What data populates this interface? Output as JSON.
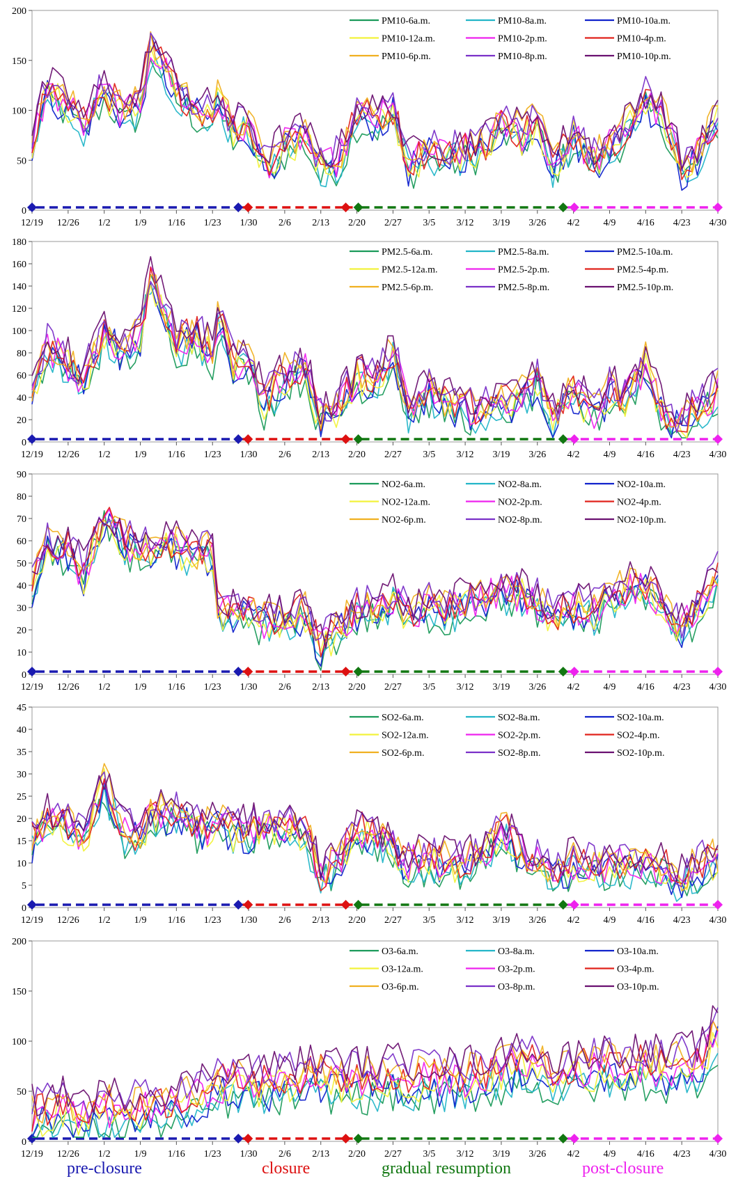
{
  "figure": {
    "phases": [
      {
        "name": "pre-closure",
        "color": "#1a1ab0",
        "start": "12/19",
        "end": "1/28"
      },
      {
        "name": "closure",
        "color": "#dd1111",
        "start": "1/28",
        "end": "2/20"
      },
      {
        "name": "gradual resumption",
        "color": "#117711",
        "start": "2/20",
        "end": "3/31"
      },
      {
        "name": "post-closure",
        "color": "#ee22ee",
        "start": "3/31",
        "end": "4/30"
      }
    ]
  },
  "chart_data": [
    {
      "type": "line",
      "pollutant": "PM10",
      "x_range": [
        "12/19",
        "4/30"
      ],
      "x_ticks": [
        "12/19",
        "12/26",
        "1/2",
        "1/9",
        "1/16",
        "1/23",
        "1/30",
        "2/6",
        "2/13",
        "2/20",
        "2/27",
        "3/5",
        "3/12",
        "3/19",
        "3/26",
        "4/2",
        "4/9",
        "4/16",
        "4/23",
        "4/30"
      ],
      "ylim": [
        0,
        200
      ],
      "y_ticks": [
        0,
        50,
        100,
        150,
        200
      ],
      "legend_position": "top-right",
      "series": [
        {
          "name": "PM10-6a.m.",
          "color": "#1a9a5a"
        },
        {
          "name": "PM10-8a.m.",
          "color": "#22b5c8"
        },
        {
          "name": "PM10-10a.m.",
          "color": "#1022cc"
        },
        {
          "name": "PM10-12a.m.",
          "color": "#f2f23a"
        },
        {
          "name": "PM10-2p.m.",
          "color": "#ee22ee"
        },
        {
          "name": "PM10-4p.m.",
          "color": "#e0221a"
        },
        {
          "name": "PM10-6p.m.",
          "color": "#f0b020"
        },
        {
          "name": "PM10-8p.m.",
          "color": "#7a30c8"
        },
        {
          "name": "PM10-10p.m.",
          "color": "#6a1070"
        }
      ],
      "anchor_dates": [
        "12/19",
        "12/22",
        "12/26",
        "12/29",
        "1/2",
        "1/6",
        "1/9",
        "1/11",
        "1/16",
        "1/20",
        "1/23",
        "1/24",
        "1/27",
        "1/30",
        "2/2",
        "2/6",
        "2/10",
        "2/13",
        "2/17",
        "2/20",
        "2/24",
        "2/27",
        "3/1",
        "3/5",
        "3/8",
        "3/12",
        "3/16",
        "3/19",
        "3/23",
        "3/26",
        "3/29",
        "4/2",
        "4/6",
        "4/9",
        "4/12",
        "4/16",
        "4/20",
        "4/23",
        "4/27",
        "4/30"
      ],
      "anchor_values": [
        70,
        120,
        105,
        85,
        120,
        95,
        105,
        165,
        120,
        100,
        95,
        110,
        80,
        85,
        45,
        65,
        75,
        40,
        55,
        95,
        90,
        100,
        45,
        60,
        55,
        60,
        65,
        85,
        75,
        90,
        45,
        75,
        50,
        65,
        80,
        110,
        90,
        40,
        60,
        95
      ]
    },
    {
      "type": "line",
      "pollutant": "PM2.5",
      "x_range": [
        "12/19",
        "4/30"
      ],
      "x_ticks": [
        "12/19",
        "12/26",
        "1/2",
        "1/9",
        "1/16",
        "1/23",
        "1/30",
        "2/6",
        "2/13",
        "2/20",
        "2/27",
        "3/5",
        "3/12",
        "3/19",
        "3/26",
        "4/2",
        "4/9",
        "4/16",
        "4/23",
        "4/30"
      ],
      "ylim": [
        0,
        180
      ],
      "y_ticks": [
        0,
        20,
        40,
        60,
        80,
        100,
        120,
        140,
        160,
        180
      ],
      "legend_position": "top-right",
      "series": [
        {
          "name": "PM2.5-6a.m.",
          "color": "#1a9a5a"
        },
        {
          "name": "PM2.5-8a.m.",
          "color": "#22b5c8"
        },
        {
          "name": "PM2.5-10a.m.",
          "color": "#1022cc"
        },
        {
          "name": "PM2.5-12a.m.",
          "color": "#f2f23a"
        },
        {
          "name": "PM2.5-2p.m.",
          "color": "#ee22ee"
        },
        {
          "name": "PM2.5-4p.m.",
          "color": "#e0221a"
        },
        {
          "name": "PM2.5-6p.m.",
          "color": "#f0b020"
        },
        {
          "name": "PM2.5-8p.m.",
          "color": "#7a30c8"
        },
        {
          "name": "PM2.5-10p.m.",
          "color": "#6a1070"
        }
      ],
      "anchor_dates": [
        "12/19",
        "12/22",
        "12/26",
        "12/29",
        "1/2",
        "1/6",
        "1/9",
        "1/11",
        "1/16",
        "1/20",
        "1/23",
        "1/24",
        "1/27",
        "1/30",
        "2/2",
        "2/6",
        "2/10",
        "2/13",
        "2/17",
        "2/20",
        "2/24",
        "2/27",
        "3/1",
        "3/5",
        "3/8",
        "3/12",
        "3/16",
        "3/19",
        "3/23",
        "3/26",
        "3/29",
        "4/2",
        "4/6",
        "4/9",
        "4/12",
        "4/16",
        "4/20",
        "4/23",
        "4/27",
        "4/30"
      ],
      "anchor_values": [
        45,
        85,
        70,
        55,
        100,
        80,
        95,
        150,
        90,
        95,
        80,
        110,
        70,
        75,
        35,
        60,
        65,
        20,
        35,
        60,
        55,
        80,
        30,
        45,
        35,
        30,
        30,
        35,
        40,
        55,
        20,
        45,
        25,
        45,
        40,
        70,
        20,
        15,
        35,
        45
      ]
    },
    {
      "type": "line",
      "pollutant": "NO2",
      "x_range": [
        "12/19",
        "4/30"
      ],
      "x_ticks": [
        "12/19",
        "12/26",
        "1/2",
        "1/9",
        "1/16",
        "1/23",
        "1/30",
        "2/6",
        "2/13",
        "2/20",
        "2/27",
        "3/5",
        "3/12",
        "3/19",
        "3/26",
        "4/2",
        "4/9",
        "4/16",
        "4/23",
        "4/30"
      ],
      "ylim": [
        0,
        90
      ],
      "y_ticks": [
        0,
        10,
        20,
        30,
        40,
        50,
        60,
        70,
        80,
        90
      ],
      "legend_position": "top-right",
      "series": [
        {
          "name": "NO2-6a.m.",
          "color": "#1a9a5a"
        },
        {
          "name": "NO2-8a.m.",
          "color": "#22b5c8"
        },
        {
          "name": "NO2-10a.m.",
          "color": "#1022cc"
        },
        {
          "name": "NO2-12a.m.",
          "color": "#f2f23a"
        },
        {
          "name": "NO2-2p.m.",
          "color": "#ee22ee"
        },
        {
          "name": "NO2-4p.m.",
          "color": "#e0221a"
        },
        {
          "name": "NO2-6p.m.",
          "color": "#f0b020"
        },
        {
          "name": "NO2-8p.m.",
          "color": "#7a30c8"
        },
        {
          "name": "NO2-10p.m.",
          "color": "#6a1070"
        }
      ],
      "anchor_dates": [
        "12/19",
        "12/22",
        "12/26",
        "12/29",
        "1/2",
        "1/6",
        "1/9",
        "1/11",
        "1/16",
        "1/20",
        "1/23",
        "1/24",
        "1/27",
        "1/30",
        "2/2",
        "2/6",
        "2/10",
        "2/13",
        "2/17",
        "2/20",
        "2/24",
        "2/27",
        "3/1",
        "3/5",
        "3/8",
        "3/12",
        "3/16",
        "3/19",
        "3/23",
        "3/26",
        "3/29",
        "4/2",
        "4/6",
        "4/9",
        "4/12",
        "4/16",
        "4/20",
        "4/23",
        "4/27",
        "4/30"
      ],
      "anchor_values": [
        40,
        58,
        55,
        45,
        70,
        60,
        55,
        58,
        57,
        52,
        55,
        30,
        27,
        28,
        24,
        25,
        28,
        12,
        22,
        28,
        30,
        35,
        25,
        30,
        28,
        32,
        35,
        38,
        36,
        32,
        25,
        30,
        28,
        35,
        38,
        40,
        30,
        20,
        32,
        45
      ]
    },
    {
      "type": "line",
      "pollutant": "SO2",
      "x_range": [
        "12/19",
        "4/30"
      ],
      "x_ticks": [
        "12/19",
        "12/26",
        "1/2",
        "1/9",
        "1/16",
        "1/23",
        "1/30",
        "2/6",
        "2/13",
        "2/20",
        "2/27",
        "3/5",
        "3/12",
        "3/19",
        "3/26",
        "4/2",
        "4/9",
        "4/16",
        "4/23",
        "4/30"
      ],
      "ylim": [
        0,
        45
      ],
      "y_ticks": [
        0,
        5,
        10,
        15,
        20,
        25,
        30,
        35,
        40,
        45
      ],
      "legend_position": "top-right",
      "series": [
        {
          "name": "SO2-6a.m.",
          "color": "#1a9a5a"
        },
        {
          "name": "SO2-8a.m.",
          "color": "#22b5c8"
        },
        {
          "name": "SO2-10a.m.",
          "color": "#1022cc"
        },
        {
          "name": "SO2-12a.m.",
          "color": "#f2f23a"
        },
        {
          "name": "SO2-2p.m.",
          "color": "#ee22ee"
        },
        {
          "name": "SO2-4p.m.",
          "color": "#e0221a"
        },
        {
          "name": "SO2-6p.m.",
          "color": "#f0b020"
        },
        {
          "name": "SO2-8p.m.",
          "color": "#7a30c8"
        },
        {
          "name": "SO2-10p.m.",
          "color": "#6a1070"
        }
      ],
      "anchor_dates": [
        "12/19",
        "12/22",
        "12/26",
        "12/29",
        "1/2",
        "1/6",
        "1/9",
        "1/11",
        "1/16",
        "1/20",
        "1/23",
        "1/24",
        "1/27",
        "1/30",
        "2/2",
        "2/6",
        "2/10",
        "2/13",
        "2/17",
        "2/20",
        "2/24",
        "2/27",
        "3/1",
        "3/5",
        "3/8",
        "3/12",
        "3/16",
        "3/19",
        "3/23",
        "3/26",
        "3/29",
        "4/2",
        "4/6",
        "4/9",
        "4/12",
        "4/16",
        "4/20",
        "4/23",
        "4/27",
        "4/30"
      ],
      "anchor_values": [
        15,
        20,
        18,
        15,
        28,
        17,
        16,
        20,
        22,
        18,
        18,
        20,
        17,
        17,
        18,
        18,
        17,
        7,
        12,
        18,
        15,
        14,
        10,
        11,
        10,
        10,
        12,
        18,
        12,
        10,
        8,
        10,
        9,
        10,
        9,
        10,
        9,
        6,
        10,
        11
      ]
    },
    {
      "type": "line",
      "pollutant": "O3",
      "x_range": [
        "12/19",
        "4/30"
      ],
      "x_ticks": [
        "12/19",
        "12/26",
        "1/2",
        "1/9",
        "1/16",
        "1/23",
        "1/30",
        "2/6",
        "2/13",
        "2/20",
        "2/27",
        "3/5",
        "3/12",
        "3/19",
        "3/26",
        "4/2",
        "4/9",
        "4/16",
        "4/23",
        "4/30"
      ],
      "ylim": [
        0,
        200
      ],
      "y_ticks": [
        0,
        50,
        100,
        150,
        200
      ],
      "legend_position": "top-right",
      "series": [
        {
          "name": "O3-6a.m.",
          "color": "#1a9a5a"
        },
        {
          "name": "O3-8a.m.",
          "color": "#22b5c8"
        },
        {
          "name": "O3-10a.m.",
          "color": "#1022cc"
        },
        {
          "name": "O3-12a.m.",
          "color": "#f2f23a"
        },
        {
          "name": "O3-2p.m.",
          "color": "#ee22ee"
        },
        {
          "name": "O3-4p.m.",
          "color": "#e0221a"
        },
        {
          "name": "O3-6p.m.",
          "color": "#f0b020"
        },
        {
          "name": "O3-8p.m.",
          "color": "#7a30c8"
        },
        {
          "name": "O3-10p.m.",
          "color": "#6a1070"
        }
      ],
      "anchor_dates": [
        "12/19",
        "12/22",
        "12/26",
        "12/29",
        "1/2",
        "1/6",
        "1/9",
        "1/11",
        "1/16",
        "1/20",
        "1/23",
        "1/24",
        "1/27",
        "1/30",
        "2/2",
        "2/6",
        "2/10",
        "2/13",
        "2/17",
        "2/20",
        "2/24",
        "2/27",
        "3/1",
        "3/5",
        "3/8",
        "3/12",
        "3/16",
        "3/19",
        "3/23",
        "3/26",
        "3/29",
        "4/2",
        "4/6",
        "4/9",
        "4/12",
        "4/16",
        "4/20",
        "4/23",
        "4/27",
        "4/30"
      ],
      "anchor_values": [
        22,
        28,
        32,
        25,
        30,
        30,
        32,
        35,
        35,
        45,
        50,
        55,
        58,
        60,
        55,
        60,
        62,
        65,
        60,
        62,
        60,
        65,
        60,
        62,
        60,
        62,
        65,
        70,
        80,
        75,
        60,
        70,
        72,
        75,
        72,
        75,
        70,
        75,
        80,
        110
      ]
    }
  ]
}
